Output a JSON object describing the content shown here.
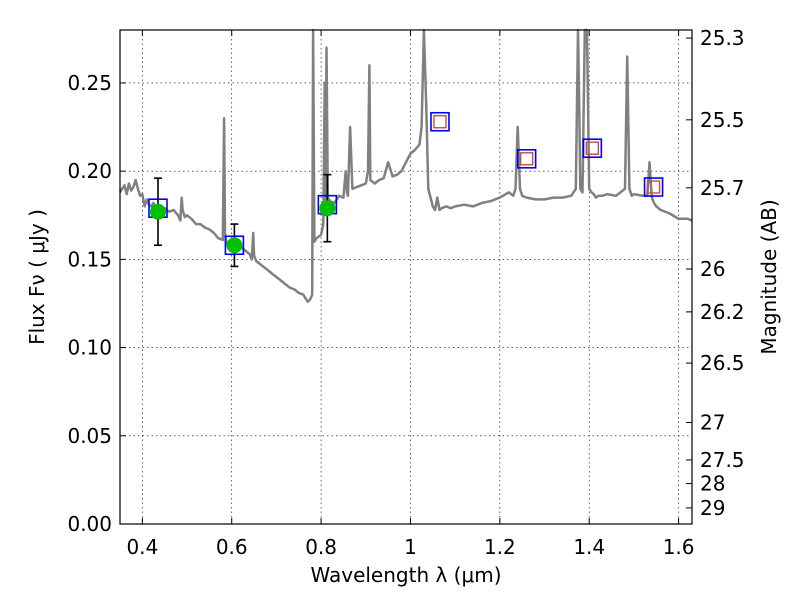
{
  "chart_data": {
    "type": "scatter",
    "xlabel": "Wavelength  λ (μm)",
    "ylabel": "Flux  Fν  ( μJy )",
    "ylabel_right": "Magnitude (AB)",
    "xlim": [
      0.35,
      1.63
    ],
    "ylim": [
      0.0,
      0.28
    ],
    "grid": true,
    "colors": {
      "spectrum": "#808080",
      "observed_fill": "#00c000",
      "model_box": "#0000ff",
      "model_inner": "#c0504d",
      "errorbar": "#000000"
    },
    "x_ticks": [
      {
        "value": 0.4,
        "label": "0.4"
      },
      {
        "value": 0.6,
        "label": "0.6"
      },
      {
        "value": 0.8,
        "label": "0.8"
      },
      {
        "value": 1.0,
        "label": "1"
      },
      {
        "value": 1.2,
        "label": "1.2"
      },
      {
        "value": 1.4,
        "label": "1.4"
      },
      {
        "value": 1.6,
        "label": "1.6"
      }
    ],
    "y_ticks": [
      {
        "value": 0.0,
        "label": "0.00"
      },
      {
        "value": 0.05,
        "label": "0.05"
      },
      {
        "value": 0.1,
        "label": "0.10"
      },
      {
        "value": 0.15,
        "label": "0.15"
      },
      {
        "value": 0.2,
        "label": "0.20"
      },
      {
        "value": 0.25,
        "label": "0.25"
      }
    ],
    "mag_ticks": [
      {
        "value": 25.3,
        "label": "25.3"
      },
      {
        "value": 25.5,
        "label": "25.5"
      },
      {
        "value": 25.7,
        "label": "25.7"
      },
      {
        "value": 26.0,
        "label": "26"
      },
      {
        "value": 26.2,
        "label": "26.2"
      },
      {
        "value": 26.5,
        "label": "26.5"
      },
      {
        "value": 27.0,
        "label": "27"
      },
      {
        "value": 27.5,
        "label": "27.5"
      },
      {
        "value": 28.0,
        "label": "28"
      },
      {
        "value": 29.0,
        "label": "29"
      }
    ],
    "observed_photometry": [
      {
        "x": 0.435,
        "y": 0.177,
        "yerr": 0.019
      },
      {
        "x": 0.606,
        "y": 0.158,
        "yerr": 0.012
      },
      {
        "x": 0.814,
        "y": 0.179,
        "yerr": 0.019
      }
    ],
    "model_photometry": [
      {
        "x": 0.435,
        "y": 0.179,
        "inner": false
      },
      {
        "x": 0.606,
        "y": 0.158,
        "inner": false
      },
      {
        "x": 0.814,
        "y": 0.181,
        "inner": false
      },
      {
        "x": 1.066,
        "y": 0.228,
        "inner": true
      },
      {
        "x": 1.26,
        "y": 0.207,
        "inner": true
      },
      {
        "x": 1.407,
        "y": 0.213,
        "inner": true
      },
      {
        "x": 1.544,
        "y": 0.191,
        "inner": true
      }
    ],
    "spectrum": {
      "x": [
        0.35,
        0.355,
        0.36,
        0.365,
        0.37,
        0.375,
        0.38,
        0.385,
        0.39,
        0.395,
        0.4,
        0.405,
        0.41,
        0.415,
        0.42,
        0.425,
        0.43,
        0.435,
        0.44,
        0.45,
        0.46,
        0.47,
        0.48,
        0.485,
        0.488,
        0.49,
        0.495,
        0.5,
        0.51,
        0.52,
        0.53,
        0.54,
        0.55,
        0.56,
        0.57,
        0.58,
        0.583,
        0.585,
        0.588,
        0.59,
        0.6,
        0.61,
        0.62,
        0.63,
        0.64,
        0.645,
        0.648,
        0.65,
        0.655,
        0.66,
        0.67,
        0.68,
        0.69,
        0.7,
        0.71,
        0.72,
        0.73,
        0.74,
        0.75,
        0.76,
        0.765,
        0.77,
        0.775,
        0.78,
        0.782,
        0.785,
        0.79,
        0.8,
        0.805,
        0.808,
        0.81,
        0.812,
        0.815,
        0.82,
        0.83,
        0.84,
        0.85,
        0.855,
        0.858,
        0.86,
        0.865,
        0.87,
        0.88,
        0.89,
        0.9,
        0.905,
        0.908,
        0.91,
        0.915,
        0.92,
        0.93,
        0.94,
        0.95,
        0.96,
        0.97,
        0.98,
        0.99,
        1.0,
        1.01,
        1.02,
        1.025,
        1.03,
        1.035,
        1.04,
        1.05,
        1.055,
        1.06,
        1.065,
        1.07,
        1.08,
        1.09,
        1.1,
        1.12,
        1.14,
        1.16,
        1.18,
        1.2,
        1.22,
        1.23,
        1.235,
        1.24,
        1.245,
        1.25,
        1.26,
        1.28,
        1.3,
        1.32,
        1.34,
        1.36,
        1.37,
        1.375,
        1.378,
        1.38,
        1.385,
        1.39,
        1.395,
        1.4,
        1.405,
        1.41,
        1.415,
        1.42,
        1.43,
        1.44,
        1.46,
        1.48,
        1.485,
        1.49,
        1.495,
        1.5,
        1.52,
        1.53,
        1.535,
        1.54,
        1.545,
        1.55,
        1.56,
        1.58,
        1.6,
        1.62,
        1.63
      ],
      "y": [
        0.188,
        0.19,
        0.192,
        0.187,
        0.193,
        0.189,
        0.191,
        0.195,
        0.19,
        0.186,
        0.187,
        0.18,
        0.184,
        0.181,
        0.18,
        0.182,
        0.178,
        0.181,
        0.18,
        0.179,
        0.177,
        0.178,
        0.175,
        0.172,
        0.185,
        0.178,
        0.174,
        0.175,
        0.173,
        0.17,
        0.17,
        0.168,
        0.167,
        0.165,
        0.162,
        0.161,
        0.23,
        0.165,
        0.159,
        0.158,
        0.156,
        0.157,
        0.157,
        0.155,
        0.153,
        0.15,
        0.165,
        0.152,
        0.149,
        0.148,
        0.146,
        0.144,
        0.142,
        0.14,
        0.138,
        0.136,
        0.134,
        0.133,
        0.131,
        0.13,
        0.128,
        0.126,
        0.127,
        0.13,
        0.28,
        0.16,
        0.162,
        0.164,
        0.17,
        0.25,
        0.175,
        0.27,
        0.185,
        0.183,
        0.182,
        0.186,
        0.185,
        0.2,
        0.188,
        0.186,
        0.225,
        0.19,
        0.191,
        0.192,
        0.193,
        0.2,
        0.26,
        0.195,
        0.194,
        0.193,
        0.195,
        0.196,
        0.205,
        0.197,
        0.198,
        0.2,
        0.205,
        0.21,
        0.212,
        0.215,
        0.225,
        0.28,
        0.24,
        0.19,
        0.18,
        0.178,
        0.185,
        0.178,
        0.179,
        0.18,
        0.179,
        0.18,
        0.181,
        0.18,
        0.182,
        0.183,
        0.185,
        0.188,
        0.186,
        0.19,
        0.225,
        0.19,
        0.186,
        0.185,
        0.184,
        0.184,
        0.185,
        0.185,
        0.186,
        0.19,
        0.28,
        0.23,
        0.19,
        0.188,
        0.28,
        0.28,
        0.19,
        0.188,
        0.187,
        0.185,
        0.186,
        0.186,
        0.187,
        0.186,
        0.19,
        0.265,
        0.19,
        0.186,
        0.187,
        0.186,
        0.186,
        0.205,
        0.185,
        0.182,
        0.18,
        0.178,
        0.176,
        0.173,
        0.173,
        0.172
      ]
    }
  }
}
